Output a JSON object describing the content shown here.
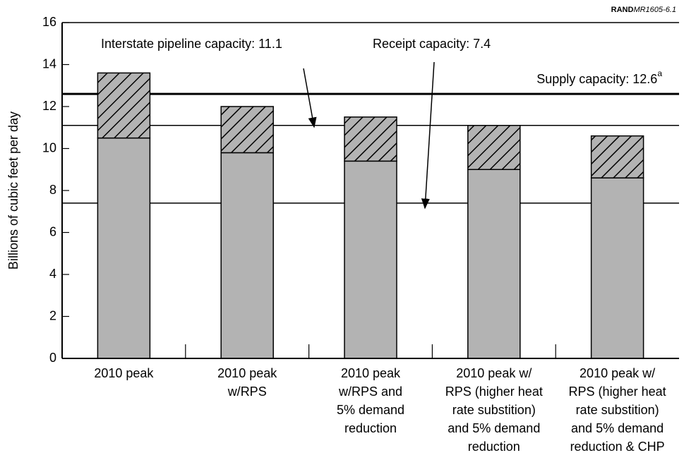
{
  "chart_data": {
    "type": "stacked_bar",
    "source": [
      "RAND",
      "MR1605-6.1"
    ],
    "y_label": "Billions of cubic feet per day",
    "categories": [
      [
        "2010 peak"
      ],
      [
        "2010 peak",
        "w/RPS"
      ],
      [
        "2010 peak",
        "w/RPS and",
        "5% demand",
        "reduction"
      ],
      [
        "2010 peak w/",
        "RPS (higher heat",
        "rate substition)",
        "and 5% demand",
        "reduction"
      ],
      [
        "2010 peak w/",
        "RPS (higher heat",
        "rate substition)",
        "and 5% demand",
        "reduction & CHP"
      ]
    ],
    "series": [
      {
        "color": "#b3b3b3",
        "values": [
          10.5,
          9.8,
          9.4,
          9.0,
          8.6
        ]
      },
      {
        "color": "#b3b3b3",
        "pattern": "hatch",
        "values": [
          3.1,
          2.2,
          2.1,
          2.1,
          2.0
        ]
      }
    ],
    "reference_lines": [
      {
        "value": 12.6,
        "label": "Supply capacity: 12.6",
        "superscript": "a",
        "thick": true
      },
      {
        "value": 11.1,
        "label": "Interstate pipeline capacity: 11.1"
      },
      {
        "value": 7.4,
        "label": "Receipt capacity: 7.4"
      }
    ],
    "ylim": [
      0,
      16
    ],
    "yticks": [
      0,
      2,
      4,
      6,
      8,
      10,
      12,
      14,
      16
    ]
  }
}
